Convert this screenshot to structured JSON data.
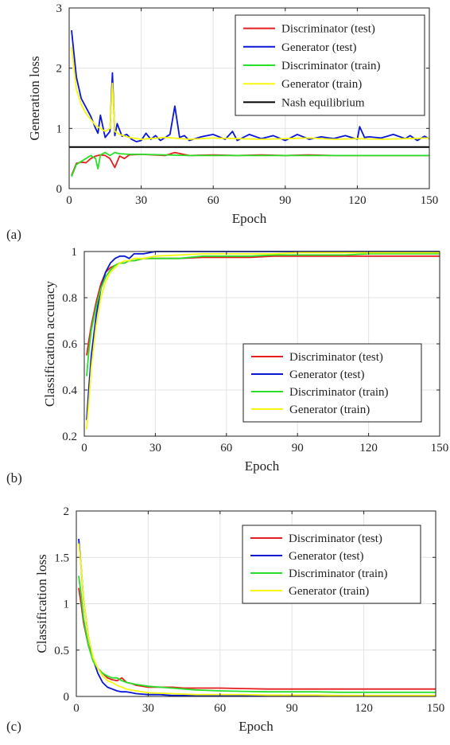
{
  "chart_data": [
    {
      "type": "line",
      "panel_label": "(a)",
      "xlabel": "Epoch",
      "ylabel": "Generation loss",
      "xlim": [
        0,
        150
      ],
      "ylim": [
        0,
        3
      ],
      "xticks": [
        0,
        30,
        60,
        90,
        120,
        150
      ],
      "yticks": [
        0,
        1,
        2,
        3
      ],
      "grid": true,
      "legend_position": "top-right",
      "series": [
        {
          "name": "Discriminator (test)",
          "color": "#e51f1f",
          "x": [
            1,
            3,
            5,
            7,
            9,
            11,
            13,
            15,
            17,
            19,
            21,
            23,
            25,
            30,
            35,
            40,
            44,
            50,
            60,
            70,
            80,
            90,
            100,
            110,
            120,
            130,
            140,
            150
          ],
          "y": [
            0.22,
            0.42,
            0.44,
            0.43,
            0.5,
            0.54,
            0.56,
            0.55,
            0.5,
            0.35,
            0.54,
            0.5,
            0.56,
            0.57,
            0.56,
            0.55,
            0.6,
            0.55,
            0.56,
            0.55,
            0.56,
            0.55,
            0.56,
            0.55,
            0.55,
            0.55,
            0.55,
            0.55
          ]
        },
        {
          "name": "Generator (test)",
          "color": "#0a17d6",
          "x": [
            1,
            3,
            5,
            7,
            9,
            11,
            12,
            13,
            15,
            17,
            18,
            19,
            20,
            22,
            24,
            26,
            28,
            30,
            32,
            34,
            36,
            38,
            40,
            42,
            44,
            46,
            48,
            50,
            55,
            60,
            65,
            68,
            70,
            75,
            80,
            85,
            90,
            95,
            100,
            105,
            110,
            115,
            120,
            121,
            123,
            125,
            130,
            135,
            140,
            142,
            145,
            148,
            150
          ],
          "y": [
            2.63,
            1.85,
            1.5,
            1.35,
            1.2,
            1.0,
            0.92,
            1.22,
            0.85,
            0.95,
            1.92,
            0.88,
            1.08,
            0.87,
            0.9,
            0.82,
            0.78,
            0.8,
            0.92,
            0.82,
            0.88,
            0.8,
            0.85,
            0.9,
            1.37,
            0.85,
            0.88,
            0.8,
            0.86,
            0.9,
            0.82,
            0.95,
            0.8,
            0.9,
            0.83,
            0.88,
            0.8,
            0.9,
            0.82,
            0.86,
            0.83,
            0.88,
            0.82,
            1.03,
            0.85,
            0.86,
            0.84,
            0.9,
            0.83,
            0.88,
            0.8,
            0.87,
            0.83
          ]
        },
        {
          "name": "Discriminator (train)",
          "color": "#28e028",
          "x": [
            1,
            3,
            5,
            7,
            9,
            11,
            12,
            13,
            15,
            17,
            19,
            21,
            25,
            30,
            40,
            50,
            60,
            70,
            80,
            90,
            100,
            110,
            120,
            130,
            140,
            150
          ],
          "y": [
            0.2,
            0.4,
            0.45,
            0.5,
            0.55,
            0.5,
            0.33,
            0.56,
            0.6,
            0.55,
            0.6,
            0.58,
            0.57,
            0.57,
            0.56,
            0.55,
            0.55,
            0.55,
            0.55,
            0.55,
            0.55,
            0.55,
            0.55,
            0.55,
            0.55,
            0.55
          ]
        },
        {
          "name": "Generator (train)",
          "color": "#f7f70f",
          "x": [
            1,
            3,
            5,
            7,
            9,
            11,
            13,
            15,
            17,
            18,
            19,
            21,
            25,
            30,
            40,
            50,
            60,
            70,
            80,
            90,
            100,
            110,
            120,
            130,
            140,
            150
          ],
          "y": [
            2.35,
            1.65,
            1.4,
            1.25,
            1.15,
            1.05,
            1.0,
            0.95,
            1.0,
            1.75,
            0.95,
            0.9,
            0.85,
            0.82,
            0.85,
            0.82,
            0.84,
            0.83,
            0.82,
            0.83,
            0.84,
            0.82,
            0.83,
            0.82,
            0.83,
            0.84
          ]
        },
        {
          "name": "Nash equilibrium",
          "color": "#000000",
          "x": [
            0,
            150
          ],
          "y": [
            0.69,
            0.69
          ]
        }
      ]
    },
    {
      "type": "line",
      "panel_label": "(b)",
      "xlabel": "Epoch",
      "ylabel": "Classification accuracy",
      "xlim": [
        0,
        150
      ],
      "ylim": [
        0.2,
        1
      ],
      "xticks": [
        0,
        30,
        60,
        90,
        120,
        150
      ],
      "yticks": [
        0.2,
        0.4,
        0.6,
        0.8,
        1
      ],
      "ytick_labels": [
        "0.2",
        "0.4",
        "0.6",
        "0.8",
        "1"
      ],
      "grid": true,
      "legend_position": "center-right",
      "series": [
        {
          "name": "Discriminator (test)",
          "color": "#e51f1f",
          "x": [
            1,
            2,
            3,
            5,
            7,
            9,
            11,
            13,
            15,
            17,
            19,
            21,
            25,
            30,
            40,
            50,
            60,
            70,
            80,
            90,
            100,
            110,
            120,
            130,
            140,
            150
          ],
          "y": [
            0.55,
            0.62,
            0.68,
            0.78,
            0.86,
            0.91,
            0.93,
            0.94,
            0.95,
            0.95,
            0.96,
            0.96,
            0.97,
            0.97,
            0.97,
            0.975,
            0.975,
            0.975,
            0.98,
            0.98,
            0.98,
            0.98,
            0.98,
            0.98,
            0.98,
            0.98
          ]
        },
        {
          "name": "Generator (test)",
          "color": "#0a17d6",
          "x": [
            1,
            2,
            3,
            5,
            7,
            9,
            11,
            13,
            15,
            17,
            19,
            21,
            25,
            30,
            40,
            50,
            60,
            70,
            80,
            90,
            100,
            110,
            120,
            130,
            140,
            150
          ],
          "y": [
            0.27,
            0.42,
            0.55,
            0.72,
            0.84,
            0.91,
            0.95,
            0.97,
            0.98,
            0.98,
            0.97,
            0.99,
            0.99,
            1.0,
            1.0,
            1.0,
            1.0,
            1.0,
            1.0,
            1.0,
            1.0,
            1.0,
            1.0,
            1.0,
            1.0,
            1.0
          ]
        },
        {
          "name": "Discriminator (train)",
          "color": "#28e028",
          "x": [
            1,
            2,
            3,
            5,
            7,
            9,
            11,
            13,
            15,
            17,
            19,
            21,
            25,
            30,
            40,
            50,
            60,
            70,
            80,
            90,
            100,
            110,
            120,
            130,
            140,
            150
          ],
          "y": [
            0.46,
            0.58,
            0.66,
            0.76,
            0.84,
            0.89,
            0.92,
            0.94,
            0.95,
            0.95,
            0.96,
            0.96,
            0.97,
            0.97,
            0.97,
            0.98,
            0.98,
            0.98,
            0.985,
            0.985,
            0.985,
            0.985,
            0.99,
            0.99,
            0.99,
            0.99
          ]
        },
        {
          "name": "Generator (train)",
          "color": "#f7f70f",
          "x": [
            1,
            2,
            3,
            5,
            7,
            9,
            11,
            13,
            15,
            17,
            19,
            21,
            25,
            30,
            40,
            50,
            60,
            70,
            80,
            90,
            100,
            110,
            120,
            130,
            140,
            150
          ],
          "y": [
            0.23,
            0.36,
            0.5,
            0.68,
            0.8,
            0.87,
            0.91,
            0.93,
            0.95,
            0.96,
            0.96,
            0.97,
            0.97,
            0.98,
            0.985,
            0.99,
            0.99,
            0.99,
            0.99,
            0.995,
            0.995,
            0.995,
            0.995,
            0.995,
            0.995,
            0.995
          ]
        }
      ]
    },
    {
      "type": "line",
      "panel_label": "(c)",
      "xlabel": "Epoch",
      "ylabel": "Classification loss",
      "xlim": [
        0,
        150
      ],
      "ylim": [
        0,
        2
      ],
      "xticks": [
        0,
        30,
        60,
        90,
        120,
        150
      ],
      "yticks": [
        0,
        0.5,
        1,
        1.5,
        2
      ],
      "ytick_labels": [
        "0",
        "0.5",
        "1",
        "1.5",
        "2"
      ],
      "grid": true,
      "legend_position": "top-right",
      "series": [
        {
          "name": "Discriminator (test)",
          "color": "#e51f1f",
          "x": [
            1,
            2,
            3,
            5,
            7,
            9,
            11,
            13,
            15,
            17,
            19,
            21,
            23,
            25,
            30,
            40,
            45,
            50,
            60,
            70,
            80,
            90,
            100,
            110,
            120,
            130,
            140,
            150
          ],
          "y": [
            1.17,
            1.0,
            0.8,
            0.55,
            0.4,
            0.3,
            0.25,
            0.2,
            0.18,
            0.17,
            0.2,
            0.15,
            0.14,
            0.12,
            0.1,
            0.1,
            0.09,
            0.09,
            0.09,
            0.085,
            0.08,
            0.08,
            0.08,
            0.08,
            0.08,
            0.08,
            0.08,
            0.08
          ]
        },
        {
          "name": "Generator (test)",
          "color": "#0a17d6",
          "x": [
            1,
            2,
            3,
            5,
            7,
            9,
            11,
            13,
            15,
            17,
            19,
            21,
            23,
            25,
            30,
            35,
            40,
            50,
            60,
            70,
            80,
            90,
            100,
            110,
            120,
            130,
            140,
            150
          ],
          "y": [
            1.7,
            1.4,
            1.05,
            0.65,
            0.4,
            0.25,
            0.15,
            0.1,
            0.08,
            0.06,
            0.05,
            0.05,
            0.04,
            0.03,
            0.02,
            0.02,
            0.01,
            0.01,
            0.01,
            0.01,
            0.01,
            0.005,
            0.005,
            0.005,
            0.005,
            0.005,
            0.005,
            0.005
          ]
        },
        {
          "name": "Discriminator (train)",
          "color": "#28e028",
          "x": [
            1,
            2,
            3,
            5,
            7,
            9,
            11,
            13,
            15,
            17,
            19,
            21,
            25,
            30,
            40,
            50,
            60,
            70,
            80,
            90,
            100,
            110,
            120,
            130,
            140,
            150
          ],
          "y": [
            1.3,
            1.1,
            0.85,
            0.55,
            0.38,
            0.3,
            0.25,
            0.22,
            0.2,
            0.2,
            0.17,
            0.15,
            0.13,
            0.11,
            0.09,
            0.07,
            0.06,
            0.055,
            0.05,
            0.05,
            0.05,
            0.045,
            0.045,
            0.045,
            0.045,
            0.045
          ]
        },
        {
          "name": "Generator (train)",
          "color": "#f7f70f",
          "x": [
            1,
            2,
            3,
            5,
            7,
            9,
            11,
            13,
            15,
            17,
            19,
            21,
            25,
            30,
            40,
            50,
            60,
            70,
            80,
            90,
            100,
            110,
            120,
            130,
            140,
            150
          ],
          "y": [
            1.65,
            1.4,
            1.05,
            0.65,
            0.42,
            0.3,
            0.22,
            0.17,
            0.15,
            0.12,
            0.1,
            0.08,
            0.06,
            0.04,
            0.03,
            0.02,
            0.02,
            0.02,
            0.015,
            0.015,
            0.015,
            0.01,
            0.01,
            0.01,
            0.01,
            0.01
          ]
        }
      ]
    }
  ]
}
